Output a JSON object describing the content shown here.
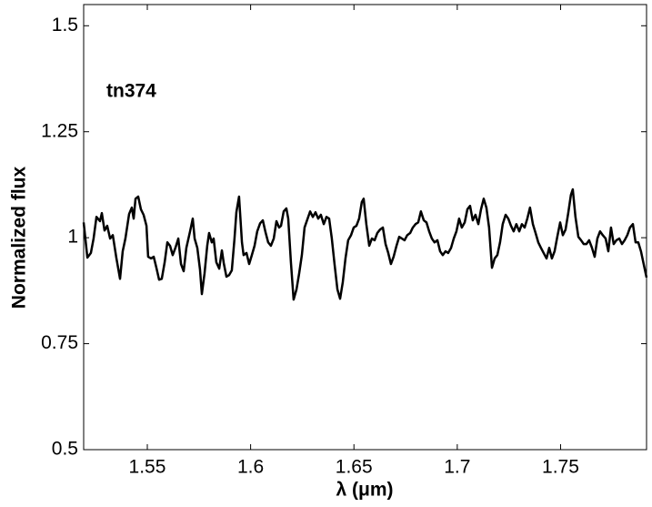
{
  "chart_data": {
    "type": "line",
    "annotation": "tn374",
    "xlabel": "λ (μm)",
    "ylabel": "Normalized flux",
    "xlim": [
      1.5192,
      1.7916
    ],
    "ylim": [
      0.5,
      1.55
    ],
    "xticks": [
      1.55,
      1.6,
      1.65,
      1.7,
      1.75
    ],
    "yticks": [
      0.5,
      0.75,
      1,
      1.25,
      1.5
    ],
    "grid": false,
    "series": [
      {
        "color": "#000000",
        "x": [
          1.5192,
          1.521,
          1.5227,
          1.524,
          1.5254,
          1.5271,
          1.528,
          1.5293,
          1.5306,
          1.532,
          1.5333,
          1.535,
          1.5368,
          1.5381,
          1.5394,
          1.5412,
          1.5425,
          1.5434,
          1.5443,
          1.5456,
          1.5469,
          1.5482,
          1.5496,
          1.5504,
          1.5518,
          1.5531,
          1.5544,
          1.5557,
          1.557,
          1.5584,
          1.5597,
          1.561,
          1.5623,
          1.5636,
          1.565,
          1.5663,
          1.5676,
          1.5689,
          1.5707,
          1.572,
          1.5729,
          1.5742,
          1.5755,
          1.5764,
          1.5777,
          1.579,
          1.5799,
          1.5812,
          1.5821,
          1.5834,
          1.5848,
          1.5861,
          1.587,
          1.5883,
          1.5896,
          1.5909,
          1.5922,
          1.5931,
          1.5944,
          1.5958,
          1.5966,
          1.598,
          1.5993,
          1.6006,
          1.6019,
          1.6032,
          1.6046,
          1.6059,
          1.6072,
          1.6085,
          1.6098,
          1.6112,
          1.6125,
          1.6138,
          1.6147,
          1.616,
          1.6173,
          1.6182,
          1.6195,
          1.6208,
          1.6222,
          1.6235,
          1.6248,
          1.6261,
          1.6288,
          1.6301,
          1.6314,
          1.6327,
          1.634,
          1.6354,
          1.6367,
          1.638,
          1.6393,
          1.6406,
          1.642,
          1.6433,
          1.6446,
          1.6459,
          1.6472,
          1.6486,
          1.6499,
          1.6512,
          1.6525,
          1.6538,
          1.6547,
          1.656,
          1.6574,
          1.6587,
          1.66,
          1.6613,
          1.6626,
          1.664,
          1.6653,
          1.6666,
          1.6679,
          1.6692,
          1.6706,
          1.6719,
          1.6732,
          1.6745,
          1.6758,
          1.6772,
          1.6785,
          1.6798,
          1.6811,
          1.6824,
          1.6838,
          1.6851,
          1.6864,
          1.6877,
          1.689,
          1.6904,
          1.6917,
          1.693,
          1.6943,
          1.6956,
          1.697,
          1.6983,
          1.6996,
          1.7009,
          1.7022,
          1.7036,
          1.7049,
          1.7062,
          1.7075,
          1.7088,
          1.7102,
          1.7115,
          1.7128,
          1.7141,
          1.7154,
          1.7168,
          1.7181,
          1.7194,
          1.7207,
          1.722,
          1.7234,
          1.7247,
          1.726,
          1.7273,
          1.7286,
          1.73,
          1.7313,
          1.7326,
          1.7339,
          1.7352,
          1.7366,
          1.7379,
          1.7392,
          1.7405,
          1.7418,
          1.7432,
          1.7445,
          1.7458,
          1.7471,
          1.7484,
          1.7498,
          1.7511,
          1.7524,
          1.7537,
          1.755,
          1.7559,
          1.7572,
          1.7586,
          1.7599,
          1.7612,
          1.7625,
          1.7638,
          1.7652,
          1.7665,
          1.7678,
          1.7691,
          1.7704,
          1.7718,
          1.7731,
          1.7744,
          1.7757,
          1.777,
          1.7784,
          1.7797,
          1.781,
          1.7823,
          1.7836,
          1.785,
          1.7863,
          1.7876,
          1.7889,
          1.7902,
          1.7916
        ],
        "values": [
          1.036,
          0.953,
          0.964,
          0.998,
          1.049,
          1.039,
          1.058,
          1.017,
          1.028,
          0.998,
          1.006,
          0.953,
          0.903,
          0.968,
          0.998,
          1.056,
          1.071,
          1.045,
          1.092,
          1.097,
          1.067,
          1.054,
          1.028,
          0.955,
          0.951,
          0.955,
          0.929,
          0.901,
          0.903,
          0.942,
          0.989,
          0.981,
          0.959,
          0.976,
          0.998,
          0.938,
          0.921,
          0.976,
          1.015,
          1.045,
          0.998,
          0.976,
          0.925,
          0.867,
          0.916,
          0.981,
          1.011,
          0.989,
          0.998,
          0.942,
          0.927,
          0.97,
          0.94,
          0.908,
          0.912,
          0.923,
          0.998,
          1.06,
          1.097,
          0.989,
          0.959,
          0.964,
          0.938,
          0.959,
          0.981,
          1.015,
          1.034,
          1.041,
          1.013,
          0.989,
          0.981,
          0.998,
          1.039,
          1.024,
          1.028,
          1.062,
          1.069,
          1.045,
          0.942,
          0.854,
          0.878,
          0.916,
          0.959,
          1.024,
          1.062,
          1.049,
          1.06,
          1.045,
          1.054,
          1.032,
          1.049,
          1.045,
          0.998,
          0.938,
          0.878,
          0.856,
          0.895,
          0.951,
          0.994,
          1.006,
          1.024,
          1.028,
          1.045,
          1.084,
          1.092,
          1.032,
          0.981,
          0.998,
          0.994,
          1.011,
          1.019,
          1.024,
          0.985,
          0.964,
          0.938,
          0.955,
          0.981,
          1.002,
          0.998,
          0.994,
          1.006,
          1.011,
          1.024,
          1.032,
          1.036,
          1.062,
          1.041,
          1.036,
          1.015,
          0.998,
          0.989,
          0.994,
          0.968,
          0.959,
          0.968,
          0.964,
          0.976,
          0.998,
          1.015,
          1.045,
          1.024,
          1.036,
          1.067,
          1.075,
          1.041,
          1.054,
          1.032,
          1.067,
          1.092,
          1.071,
          1.024,
          0.929,
          0.951,
          0.959,
          0.989,
          1.032,
          1.054,
          1.045,
          1.028,
          1.015,
          1.032,
          1.015,
          1.032,
          1.024,
          1.045,
          1.071,
          1.032,
          1.011,
          0.989,
          0.976,
          0.964,
          0.951,
          0.976,
          0.951,
          0.968,
          1.002,
          1.036,
          1.006,
          1.019,
          1.058,
          1.101,
          1.114,
          1.049,
          1.002,
          0.994,
          0.985,
          0.985,
          0.994,
          0.976,
          0.955,
          0.998,
          1.015,
          1.006,
          0.998,
          0.968,
          1.024,
          0.985,
          0.994,
          0.998,
          0.985,
          0.994,
          1.006,
          1.024,
          1.032,
          0.989,
          0.989,
          0.968,
          0.938,
          0.906
        ]
      }
    ]
  }
}
